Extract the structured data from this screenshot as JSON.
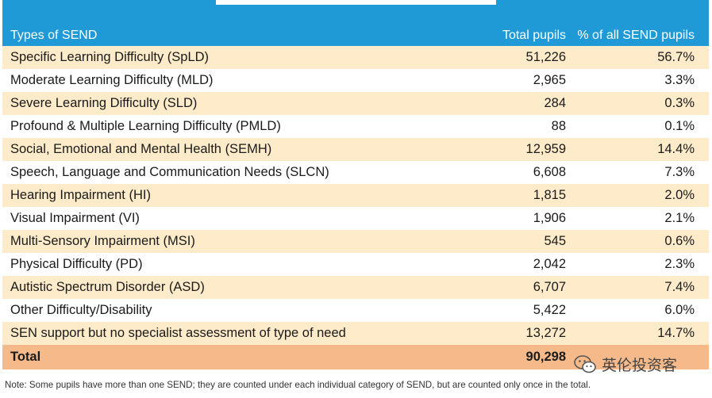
{
  "chart_data": {
    "type": "table",
    "columns": [
      "Types of SEND",
      "Total pupils",
      "% of all SEND pupils"
    ],
    "rows": [
      {
        "type": "Specific Learning Difficulty (SpLD)",
        "total": "51,226",
        "pct": "56.7%"
      },
      {
        "type": "Moderate Learning Difficulty (MLD)",
        "total": "2,965",
        "pct": "3.3%"
      },
      {
        "type": "Severe Learning Difficulty (SLD)",
        "total": "284",
        "pct": "0.3%"
      },
      {
        "type": "Profound & Multiple Learning Difficulty (PMLD)",
        "total": "88",
        "pct": "0.1%"
      },
      {
        "type": "Social, Emotional and Mental Health (SEMH)",
        "total": "12,959",
        "pct": "14.4%"
      },
      {
        "type": "Speech, Language and Communication Needs (SLCN)",
        "total": "6,608",
        "pct": "7.3%"
      },
      {
        "type": "Hearing Impairment (HI)",
        "total": "1,815",
        "pct": "2.0%"
      },
      {
        "type": "Visual Impairment (VI)",
        "total": "1,906",
        "pct": "2.1%"
      },
      {
        "type": "Multi-Sensory Impairment (MSI)",
        "total": "545",
        "pct": "0.6%"
      },
      {
        "type": "Physical Difficulty (PD)",
        "total": "2,042",
        "pct": "2.3%"
      },
      {
        "type": "Autistic Spectrum Disorder (ASD)",
        "total": "6,707",
        "pct": "7.4%"
      },
      {
        "type": "Other Difficulty/Disability",
        "total": "5,422",
        "pct": "6.0%"
      },
      {
        "type": "SEN support but no specialist assessment of type of need",
        "total": "13,272",
        "pct": "14.7%"
      }
    ],
    "total_row": {
      "label": "Total",
      "total": "90,298"
    },
    "note": "Note: Some pupils have more than one SEND; they are counted under each individual category of SEND, but are counted only once in the total."
  },
  "colors": {
    "header": "#1f9ad6",
    "odd_row": "#fdebc9",
    "even_row": "#ffffff",
    "total_row": "#f6ba8a"
  },
  "watermark": {
    "icon": "wechat-icon",
    "text": "英伦投资客"
  }
}
